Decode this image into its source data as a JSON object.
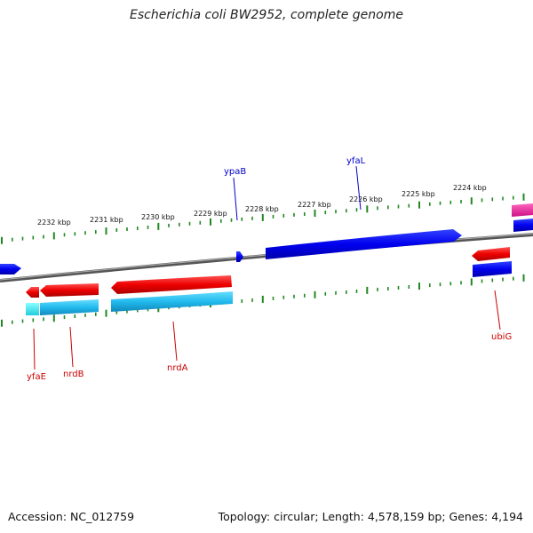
{
  "title": "Escherichia coli BW2952, complete genome",
  "footer": {
    "accession": "Accession: NC_012759",
    "summary": "Topology: circular; Length: 4,578,159 bp; Genes: 4,194"
  },
  "colors": {
    "forward_cds": "#0000ee",
    "reverse_cds": "#ee0000",
    "reverse_gene_bar": "#22bbee",
    "rna": "#ee3399",
    "backbone": "#888888",
    "tick": "#228822",
    "forward_label": "#0000cc",
    "reverse_label": "#cc0000"
  },
  "scale": {
    "unit": "kbp",
    "labels": [
      "2224 kbp",
      "2225 kbp",
      "2226 kbp",
      "2227 kbp",
      "2228 kbp",
      "2229 kbp",
      "2230 kbp",
      "2231 kbp",
      "2232 kbp"
    ]
  },
  "genes_forward": [
    {
      "name": "ypaB"
    },
    {
      "name": "yfaL"
    }
  ],
  "genes_reverse": [
    {
      "name": "yfaE"
    },
    {
      "name": "nrdB"
    },
    {
      "name": "nrdA"
    },
    {
      "name": "ubiG"
    }
  ]
}
